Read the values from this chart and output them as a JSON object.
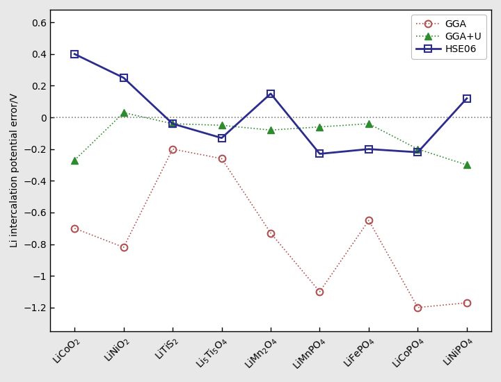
{
  "categories": [
    "LiCoO$_2$",
    "LiNiO$_2$",
    "LiTiS$_2$",
    "Li$_5$Ti$_5$O$_4$",
    "LiMn$_2$O$_4$",
    "LiMnPO$_4$",
    "LiFePO$_4$",
    "LiCoPO$_4$",
    "LiNiPO$_4$"
  ],
  "GGA": [
    -0.7,
    -0.82,
    -0.2,
    -0.26,
    -0.73,
    -1.1,
    -0.65,
    -1.2,
    -1.17
  ],
  "GGA_U": [
    -0.27,
    0.03,
    -0.04,
    -0.05,
    -0.08,
    -0.06,
    -0.04,
    -0.2,
    -0.3
  ],
  "HSE06": [
    0.4,
    0.25,
    -0.04,
    -0.13,
    0.15,
    -0.23,
    -0.2,
    -0.22,
    0.12
  ],
  "GGA_color": "#b05050",
  "GGAU_color": "#2e8b2e",
  "HSE06_color": "#2c2c8c",
  "ylabel": "Li intercalation potential error/V",
  "ylim": [
    -1.35,
    0.68
  ],
  "yticks": [
    -1.2,
    -1.0,
    -0.8,
    -0.6,
    -0.4,
    -0.2,
    0.0,
    0.2,
    0.4,
    0.6
  ],
  "ytick_labels": [
    "−1.2",
    "−1",
    "−0.8",
    "−0.6",
    "−0.4",
    "−0.2",
    "0",
    "0.2",
    "0.4",
    "0.6"
  ],
  "background_color": "#e8e8e8",
  "plot_bg_color": "#ffffff"
}
